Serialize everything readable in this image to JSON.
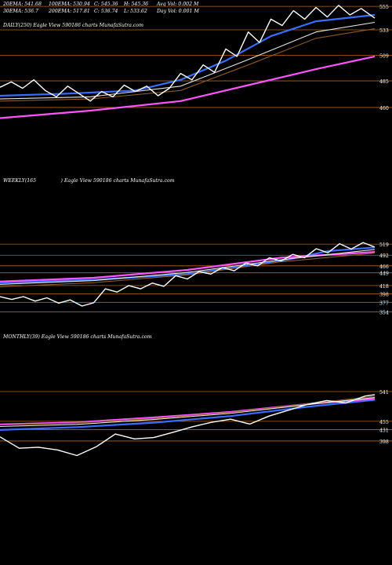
{
  "chart_data": [
    {
      "type": "line",
      "title": "DAILY(250) Eagle View 590186 charts MunafaSutra.com",
      "info_lines": [
        [
          "20EMA: 541.68",
          "100EMA: 530.94",
          "C: 545.36",
          "H: 545.36",
          "Avg Vol: 0.002 M"
        ],
        [
          "30EMA: 536.7",
          "200EMA: 517.81",
          "C: 536.74",
          "L: 533.62",
          "Day Vol: 0.001 M"
        ]
      ],
      "ylim": [
        443,
        561
      ],
      "yticks": [
        555,
        533,
        509,
        485,
        460
      ],
      "x": [
        0,
        166
      ],
      "series": [
        {
          "role": "price",
          "color": "#ffffff",
          "points": [
            [
              0,
              479
            ],
            [
              5,
              484
            ],
            [
              10,
              478
            ],
            [
              15,
              486
            ],
            [
              20,
              476
            ],
            [
              25,
              470
            ],
            [
              30,
              480
            ],
            [
              35,
              473
            ],
            [
              40,
              466
            ],
            [
              45,
              475
            ],
            [
              50,
              470
            ],
            [
              55,
              481
            ],
            [
              60,
              475
            ],
            [
              65,
              480
            ],
            [
              70,
              471
            ],
            [
              75,
              478
            ],
            [
              80,
              492
            ],
            [
              85,
              486
            ],
            [
              90,
              500
            ],
            [
              95,
              493
            ],
            [
              100,
              515
            ],
            [
              105,
              508
            ],
            [
              110,
              531
            ],
            [
              115,
              521
            ],
            [
              120,
              543
            ],
            [
              125,
              537
            ],
            [
              130,
              551
            ],
            [
              135,
              543
            ],
            [
              140,
              554
            ],
            [
              145,
              545
            ],
            [
              150,
              556
            ],
            [
              155,
              547
            ],
            [
              160,
              553
            ],
            [
              166,
              544
            ]
          ]
        },
        {
          "role": "ema",
          "color": "#3a6dff",
          "points": [
            [
              0,
              471
            ],
            [
              30,
              473
            ],
            [
              60,
              476
            ],
            [
              80,
              486
            ],
            [
              100,
              504
            ],
            [
              120,
              527
            ],
            [
              140,
              541
            ],
            [
              166,
              547
            ]
          ]
        },
        {
          "role": "ema",
          "color": "#8b5a2b",
          "points": [
            [
              0,
              466
            ],
            [
              40,
              468
            ],
            [
              80,
              476
            ],
            [
              110,
              500
            ],
            [
              140,
              525
            ],
            [
              166,
              534
            ]
          ]
        },
        {
          "role": "ema",
          "color": "#e8e8e8",
          "points": [
            [
              0,
              468
            ],
            [
              40,
              470
            ],
            [
              80,
              480
            ],
            [
              110,
              505
            ],
            [
              140,
              531
            ],
            [
              166,
              540
            ]
          ]
        },
        {
          "role": "ema",
          "color": "#ff55ff",
          "points": [
            [
              0,
              450
            ],
            [
              40,
              457
            ],
            [
              80,
              466
            ],
            [
              110,
              481
            ],
            [
              140,
              496
            ],
            [
              166,
              508
            ]
          ]
        }
      ]
    },
    {
      "type": "line",
      "title": "WEEKLY(165                ) Eagle View 590186 charts MunafaSutra.com",
      "ylim": [
        345,
        548
      ],
      "yticks": [
        519,
        492,
        466,
        449,
        418,
        398,
        377,
        354
      ],
      "x": [
        0,
        160
      ],
      "series": [
        {
          "role": "price",
          "color": "#ffffff",
          "points": [
            [
              0,
              391
            ],
            [
              5,
              384
            ],
            [
              10,
              391
            ],
            [
              15,
              380
            ],
            [
              20,
              388
            ],
            [
              25,
              375
            ],
            [
              30,
              383
            ],
            [
              35,
              368
            ],
            [
              40,
              376
            ],
            [
              45,
              410
            ],
            [
              50,
              402
            ],
            [
              55,
              418
            ],
            [
              60,
              410
            ],
            [
              65,
              424
            ],
            [
              70,
              416
            ],
            [
              75,
              442
            ],
            [
              80,
              434
            ],
            [
              85,
              452
            ],
            [
              90,
              446
            ],
            [
              95,
              462
            ],
            [
              100,
              454
            ],
            [
              105,
              473
            ],
            [
              110,
              466
            ],
            [
              115,
              486
            ],
            [
              120,
              478
            ],
            [
              125,
              494
            ],
            [
              130,
              486
            ],
            [
              135,
              508
            ],
            [
              140,
              498
            ],
            [
              145,
              520
            ],
            [
              150,
              507
            ],
            [
              155,
              523
            ],
            [
              160,
              512
            ]
          ]
        },
        {
          "role": "ema",
          "color": "#3a6dff",
          "points": [
            [
              0,
              425
            ],
            [
              40,
              432
            ],
            [
              80,
              446
            ],
            [
              120,
              478
            ],
            [
              140,
              502
            ],
            [
              160,
              511
            ]
          ]
        },
        {
          "role": "ema",
          "color": "#ff55ff",
          "points": [
            [
              0,
              428
            ],
            [
              40,
              437
            ],
            [
              80,
              456
            ],
            [
              120,
              486
            ],
            [
              160,
              500
            ]
          ]
        },
        {
          "role": "ema",
          "color": "#e8e8e8",
          "points": [
            [
              0,
              421
            ],
            [
              40,
              430
            ],
            [
              80,
              450
            ],
            [
              120,
              481
            ],
            [
              160,
              506
            ]
          ]
        },
        {
          "role": "ema",
          "color": "#8b5a2b",
          "points": [
            [
              0,
              415
            ],
            [
              40,
              425
            ],
            [
              80,
              444
            ],
            [
              120,
              476
            ],
            [
              160,
              497
            ]
          ]
        }
      ]
    },
    {
      "type": "line",
      "title": "MONTHLY(39) Eagle View 590186 charts MunafaSutra.com",
      "ylim": [
        298,
        575
      ],
      "yticks": [
        541,
        455,
        431,
        398
      ],
      "x": [
        0,
        39
      ],
      "series": [
        {
          "role": "price",
          "color": "#ffffff",
          "points": [
            [
              0,
              410
            ],
            [
              2,
              377
            ],
            [
              4,
              380
            ],
            [
              6,
              372
            ],
            [
              8,
              356
            ],
            [
              10,
              381
            ],
            [
              12,
              418
            ],
            [
              14,
              404
            ],
            [
              16,
              408
            ],
            [
              18,
              423
            ],
            [
              20,
              439
            ],
            [
              22,
              452
            ],
            [
              24,
              461
            ],
            [
              26,
              447
            ],
            [
              28,
              470
            ],
            [
              30,
              487
            ],
            [
              32,
              504
            ],
            [
              34,
              515
            ],
            [
              36,
              508
            ],
            [
              38,
              528
            ],
            [
              39,
              532
            ]
          ]
        },
        {
          "role": "ema",
          "color": "#3a6dff",
          "points": [
            [
              0,
              430
            ],
            [
              8,
              438
            ],
            [
              16,
              451
            ],
            [
              24,
              470
            ],
            [
              32,
              497
            ],
            [
              39,
              517
            ]
          ]
        },
        {
          "role": "ema",
          "color": "#ff55ff",
          "points": [
            [
              0,
              446
            ],
            [
              8,
              452
            ],
            [
              16,
              466
            ],
            [
              24,
              482
            ],
            [
              32,
              505
            ],
            [
              39,
              520
            ]
          ]
        },
        {
          "role": "ema",
          "color": "#e8e8e8",
          "points": [
            [
              0,
              440
            ],
            [
              8,
              446
            ],
            [
              16,
              460
            ],
            [
              24,
              478
            ],
            [
              32,
              503
            ],
            [
              39,
              524
            ]
          ]
        },
        {
          "role": "ema",
          "color": "#8b5a2b",
          "points": [
            [
              0,
              444
            ],
            [
              8,
              450
            ],
            [
              16,
              463
            ],
            [
              24,
              480
            ],
            [
              32,
              506
            ],
            [
              39,
              527
            ]
          ]
        }
      ]
    }
  ]
}
